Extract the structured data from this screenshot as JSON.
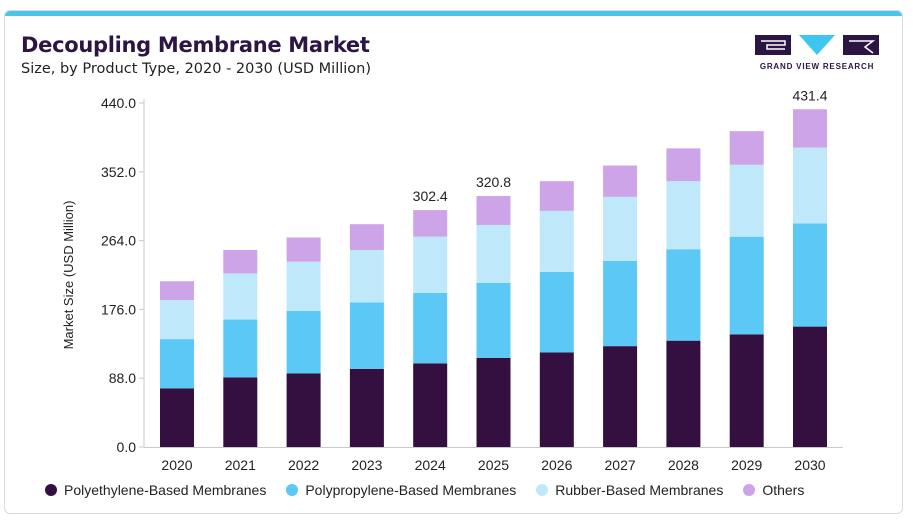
{
  "header": {
    "title": "Decoupling Membrane Market",
    "subtitle": "Size, by Product Type, 2020 - 2030 (USD Million)"
  },
  "logo": {
    "text": "GRAND VIEW RESEARCH",
    "colors": {
      "dark": "#2d1543",
      "accent": "#3ec6f0"
    }
  },
  "colors": {
    "topbar": "#4cc4ea"
  },
  "chart_data": {
    "type": "bar",
    "stacked": true,
    "categories": [
      "2020",
      "2021",
      "2022",
      "2023",
      "2024",
      "2025",
      "2026",
      "2027",
      "2028",
      "2029",
      "2030"
    ],
    "series": [
      {
        "name": "Polyethylene-Based Membranes",
        "color": "#33103f",
        "values": [
          75,
          89,
          94,
          100,
          107,
          114,
          121,
          129,
          136,
          144,
          154
        ]
      },
      {
        "name": "Polypropylene-Based Membranes",
        "color": "#5bc8f5",
        "values": [
          63,
          74,
          80,
          85,
          90,
          96,
          103,
          109,
          117,
          125,
          132
        ]
      },
      {
        "name": "Rubber-Based Membranes",
        "color": "#c0e8fb",
        "values": [
          50,
          59,
          63,
          67,
          72,
          74,
          78,
          82,
          87,
          92,
          97
        ]
      },
      {
        "name": "Others",
        "color": "#cda4e8",
        "values": [
          24,
          30,
          31,
          33,
          34,
          37,
          38,
          40,
          42,
          43,
          49
        ]
      }
    ],
    "totals_labels": {
      "2024": "302.4",
      "2025": "320.8",
      "2030": "431.4"
    },
    "ylabel": "Market Size (USD Million)",
    "xlabel": "",
    "ylim": [
      0,
      440
    ],
    "yticks": [
      0,
      88,
      176,
      264,
      352,
      440
    ],
    "ytick_labels": [
      "0.0",
      "88.0",
      "176.0",
      "264.0",
      "352.0",
      "440.0"
    ],
    "grid": false,
    "legend_position": "bottom"
  }
}
